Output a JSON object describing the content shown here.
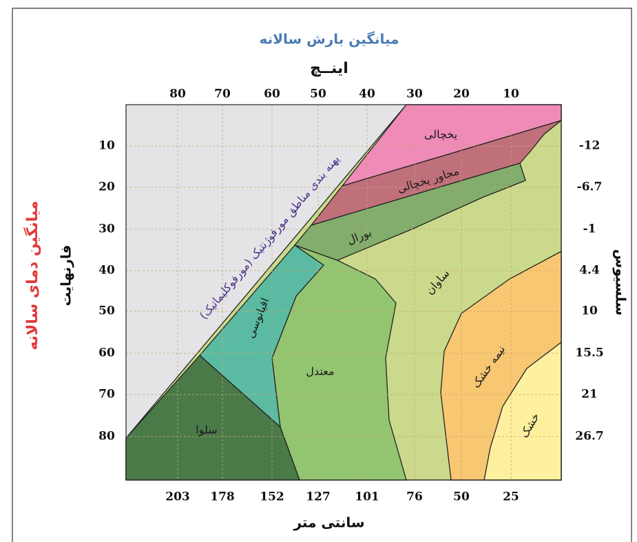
{
  "header": {
    "title": "میانگین بارش سالانه",
    "top_unit": "اینــچ",
    "bottom_unit": "سانتی متر",
    "left_title": "میانگین دمای سالانه",
    "left_unit": "فارنهایت",
    "right_unit": "سلسیوس"
  },
  "axes": {
    "top_ticks": [
      "80",
      "70",
      "60",
      "50",
      "40",
      "30",
      "20",
      "10"
    ],
    "bottom_ticks": [
      "203",
      "178",
      "152",
      "127",
      "101",
      "76",
      "50",
      "25"
    ],
    "left_ticks": [
      "10",
      "20",
      "30",
      "40",
      "50",
      "60",
      "70",
      "80"
    ],
    "right_ticks": [
      "-12",
      "-6.7",
      "-1",
      "4.4",
      "10",
      "15.5",
      "21",
      "26.7"
    ]
  },
  "diagonal_label": "پهنه بندی مناطق مورفوژنتیک (مورفوکلیماتیک)",
  "regions": [
    "یخچالی",
    "مجاور یخچالی",
    "بورال",
    "ساوان",
    "اقیانوسی",
    "معتدل",
    "نیمه خشک",
    "خشک",
    "سلوا"
  ]
}
